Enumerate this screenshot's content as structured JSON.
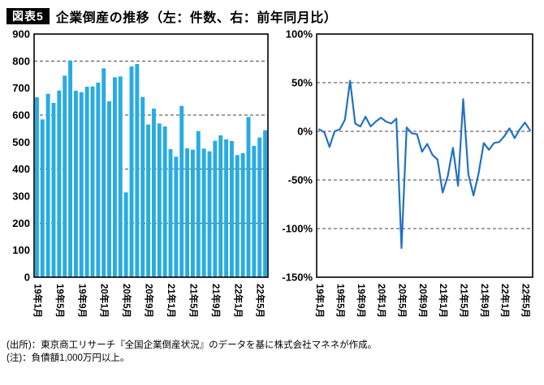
{
  "header": {
    "badge": "図表5",
    "title": "企業倒産の推移（左：件数、右：前年同月比）"
  },
  "footer": {
    "source": "(出所)：東京商工リサーチ『全国企業倒産状況』のデータを基に株式会社マネネが作成。",
    "note": "(注)：負債額1,000万円以上。"
  },
  "chart_data": {
    "x": [
      "19年1月",
      "19年2月",
      "19年3月",
      "19年4月",
      "19年5月",
      "19年6月",
      "19年7月",
      "19年8月",
      "19年9月",
      "19年10月",
      "19年11月",
      "19年12月",
      "20年1月",
      "20年2月",
      "20年3月",
      "20年4月",
      "20年5月",
      "20年6月",
      "20年7月",
      "20年8月",
      "20年9月",
      "20年10月",
      "20年11月",
      "20年12月",
      "21年1月",
      "21年2月",
      "21年3月",
      "21年4月",
      "21年5月",
      "21年6月",
      "21年7月",
      "21年8月",
      "21年9月",
      "21年10月",
      "21年11月",
      "21年12月",
      "22年1月",
      "22年2月",
      "22年3月",
      "22年4月",
      "22年5月",
      "22年6月"
    ],
    "xtick_every": 4,
    "panels": [
      {
        "type": "bar",
        "name": "件数",
        "values": [
          666,
          584,
          679,
          645,
          691,
          746,
          802,
          690,
          685,
          705,
          706,
          720,
          773,
          651,
          740,
          743,
          314,
          780,
          789,
          667,
          565,
          624,
          569,
          558,
          474,
          446,
          634,
          477,
          472,
          541,
          476,
          466,
          505,
          525,
          510,
          504,
          452,
          459,
          593,
          486,
          517,
          544
        ],
        "ylim": [
          0,
          900
        ],
        "yticks": [
          900,
          800,
          700,
          600,
          500,
          400,
          300,
          200,
          100,
          0
        ],
        "ytick_suffix": "",
        "gridlines": [
          200,
          400,
          600,
          800
        ],
        "bar_color": "#29abe2"
      },
      {
        "type": "line",
        "name": "前年同月比",
        "values": [
          2,
          -1,
          -16,
          0,
          2,
          12,
          52,
          8,
          5,
          15,
          5,
          10,
          14,
          10,
          8,
          13,
          -120,
          4,
          -2,
          -3,
          -21,
          -13,
          -24,
          -29,
          -63,
          -46,
          -17,
          -56,
          33,
          -44,
          -66,
          -43,
          -12,
          -19,
          -12,
          -11,
          -5,
          3,
          -7,
          2,
          9,
          1
        ],
        "ylim": [
          -150,
          100
        ],
        "yticks": [
          100,
          50,
          0,
          -50,
          -100,
          -150
        ],
        "ytick_suffix": "%",
        "gridlines": [
          50,
          0,
          -50,
          -100
        ],
        "line_color": "#2271c3"
      }
    ]
  }
}
